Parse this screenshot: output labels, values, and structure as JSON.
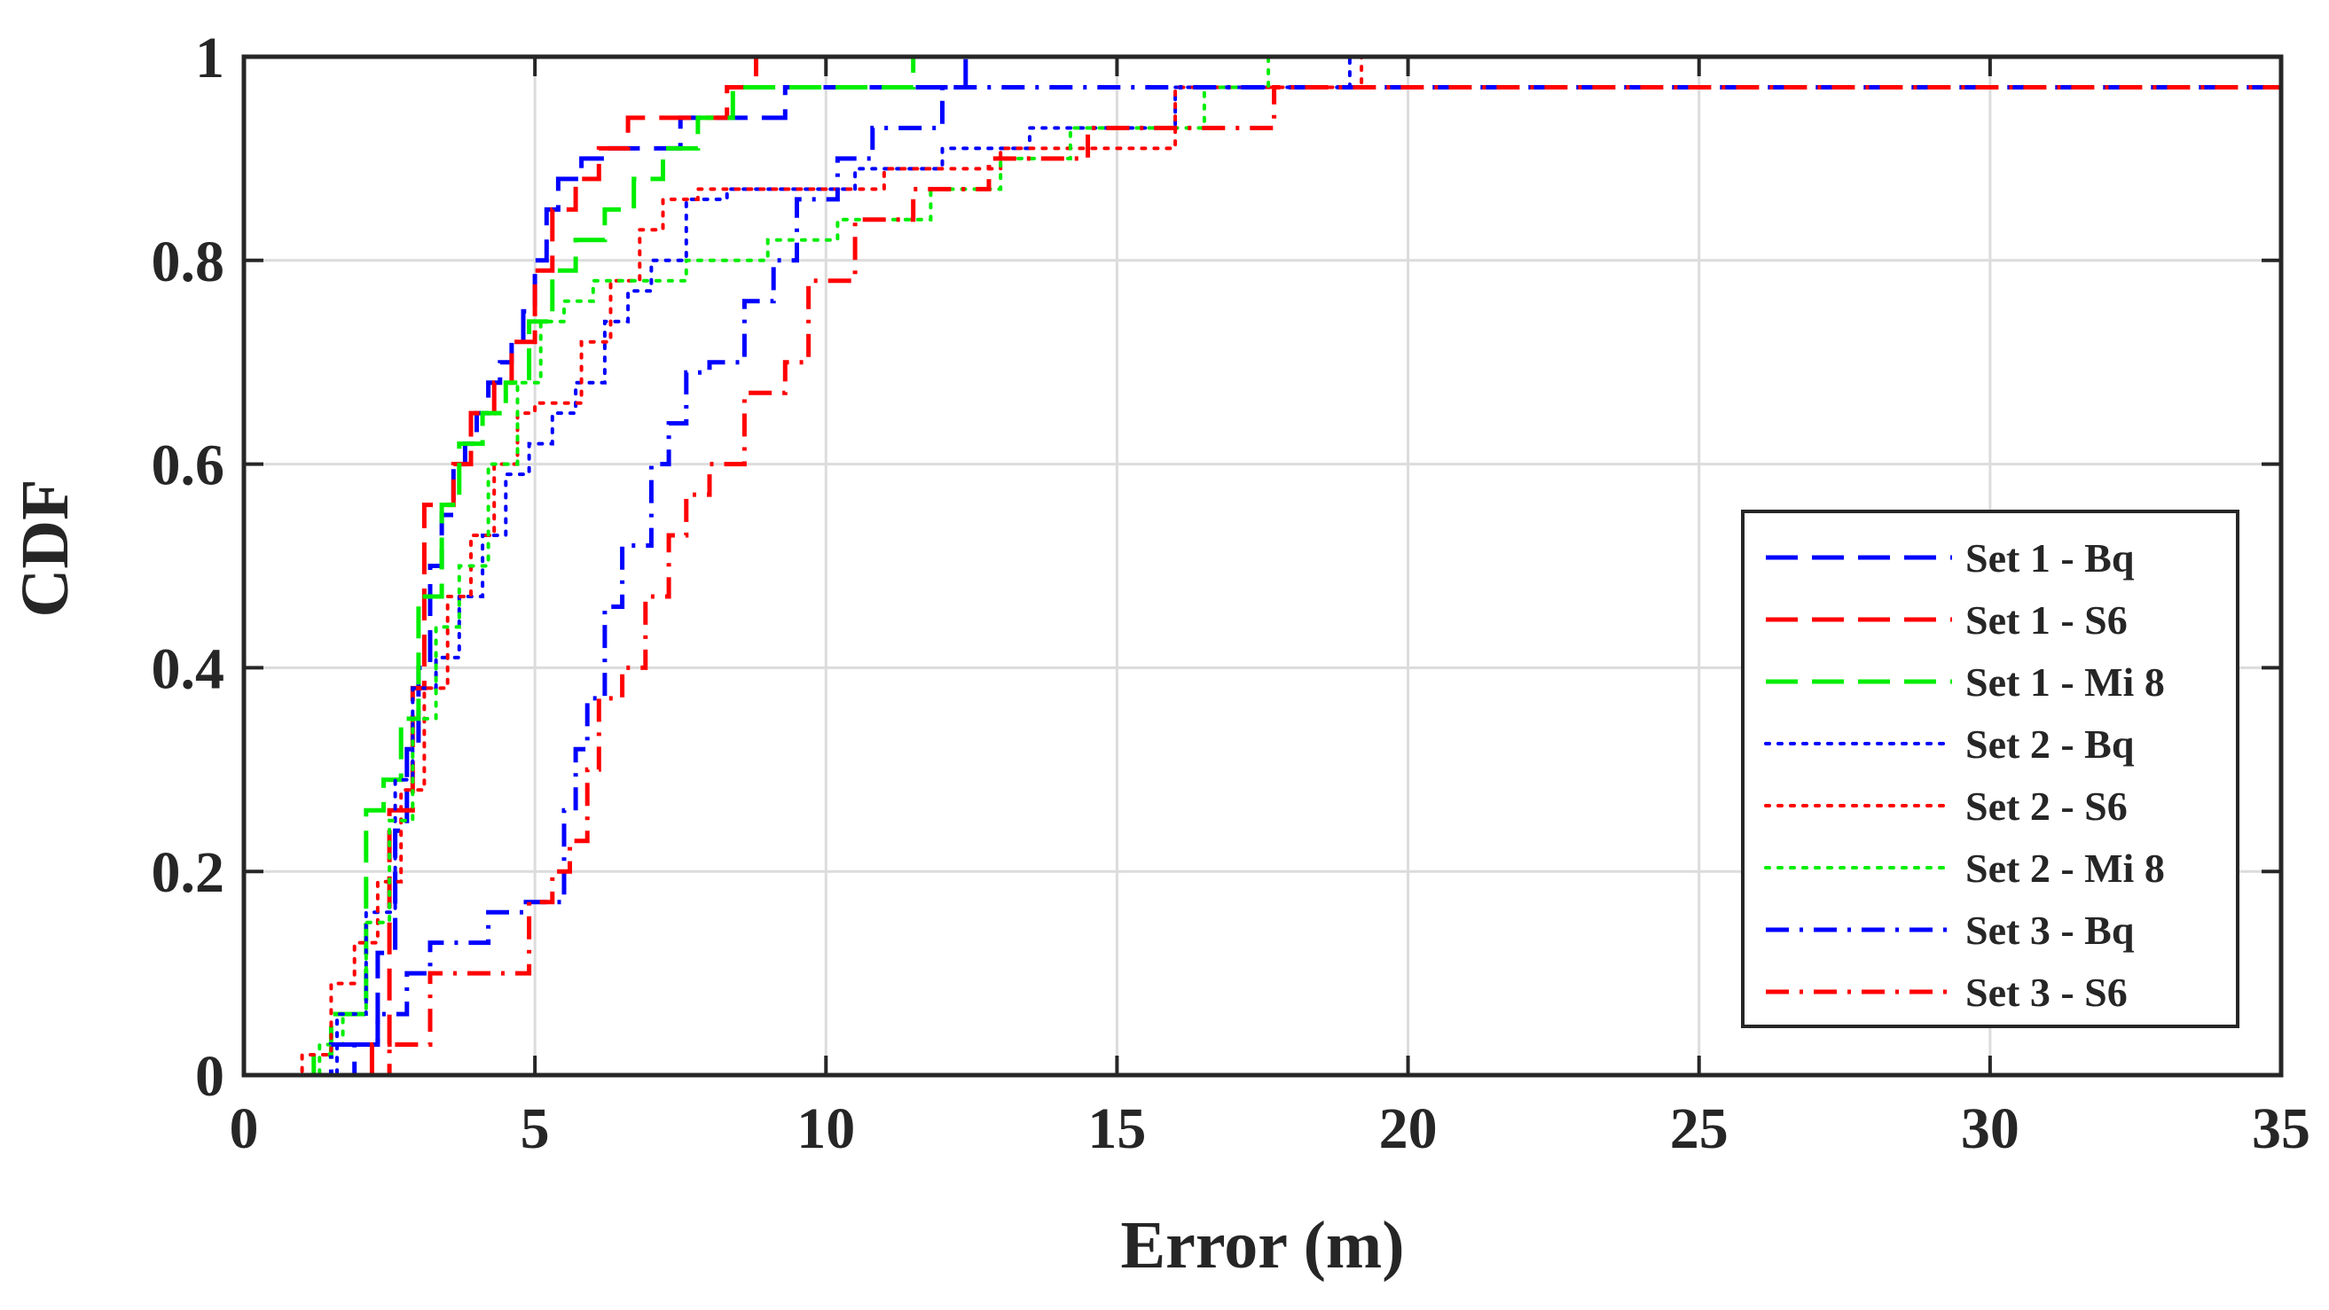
{
  "chart_data": {
    "type": "line",
    "title": "",
    "xlabel": "Error (m)",
    "ylabel": "CDF",
    "xlim": [
      0,
      35
    ],
    "ylim": [
      0,
      1
    ],
    "xticks": [
      0,
      5,
      10,
      15,
      20,
      25,
      30,
      35
    ],
    "xtick_labels": [
      "0",
      "5",
      "10",
      "15",
      "20",
      "25",
      "30",
      "35"
    ],
    "yticks": [
      0,
      0.2,
      0.4,
      0.6,
      0.8,
      1
    ],
    "ytick_labels": [
      "0",
      "0.2",
      "0.4",
      "0.6",
      "0.8",
      "1"
    ],
    "grid": true,
    "legend_position": "right-center",
    "series": [
      {
        "name": "Set 1 - Bq",
        "color": "#0000ff",
        "dash": "dashed",
        "x": [
          0,
          1.9,
          1.9,
          2.3,
          2.6,
          2.8,
          3.0,
          3.2,
          3.4,
          3.6,
          3.8,
          4.0,
          4.2,
          4.4,
          4.6,
          4.8,
          5.0,
          5.2,
          5.4,
          5.8,
          6.2,
          7.5,
          8.5,
          9.3,
          10.8,
          12.0,
          12.4,
          12.4,
          35
        ],
        "y": [
          0,
          0,
          0.03,
          0.12,
          0.24,
          0.32,
          0.4,
          0.5,
          0.55,
          0.6,
          0.62,
          0.65,
          0.68,
          0.7,
          0.72,
          0.75,
          0.8,
          0.85,
          0.88,
          0.9,
          0.91,
          0.94,
          0.94,
          0.97,
          0.97,
          0.97,
          0.97,
          1.0,
          1.0
        ]
      },
      {
        "name": "Set 1 - S6",
        "color": "#ff0000",
        "dash": "dashed",
        "x": [
          2.2,
          2.2,
          2.5,
          2.9,
          3.1,
          3.3,
          3.6,
          3.9,
          4.3,
          4.6,
          5.0,
          5.3,
          5.7,
          6.1,
          6.6,
          7.8,
          8.3,
          8.8,
          35
        ],
        "y": [
          0,
          0.03,
          0.26,
          0.38,
          0.56,
          0.56,
          0.6,
          0.65,
          0.68,
          0.72,
          0.79,
          0.85,
          0.88,
          0.91,
          0.94,
          0.94,
          0.97,
          1.0,
          1.0
        ]
      },
      {
        "name": "Set 1 - Mi 8",
        "color": "#00ee00",
        "dash": "dashed",
        "x": [
          1.0,
          1.2,
          1.5,
          2.1,
          2.4,
          2.7,
          3.0,
          3.4,
          3.7,
          4.1,
          4.5,
          4.9,
          5.3,
          5.7,
          6.2,
          6.7,
          7.2,
          7.8,
          8.4,
          10.0,
          11.5,
          35
        ],
        "y": [
          0,
          0.02,
          0.06,
          0.26,
          0.29,
          0.35,
          0.47,
          0.56,
          0.62,
          0.65,
          0.68,
          0.74,
          0.79,
          0.82,
          0.85,
          0.88,
          0.91,
          0.94,
          0.97,
          0.97,
          1.0,
          1.0
        ]
      },
      {
        "name": "Set 2 - Bq",
        "color": "#0000ff",
        "dash": "dotted",
        "x": [
          1.2,
          1.6,
          2.1,
          2.6,
          2.9,
          3.3,
          3.7,
          4.1,
          4.5,
          4.9,
          5.3,
          5.7,
          6.2,
          6.6,
          7.0,
          7.6,
          8.3,
          9.3,
          10.5,
          12.0,
          13.5,
          16.0,
          19.0,
          35
        ],
        "y": [
          0,
          0.06,
          0.16,
          0.29,
          0.38,
          0.41,
          0.47,
          0.53,
          0.59,
          0.62,
          0.65,
          0.68,
          0.74,
          0.77,
          0.8,
          0.86,
          0.87,
          0.87,
          0.89,
          0.91,
          0.93,
          0.97,
          1.0,
          1.0
        ]
      },
      {
        "name": "Set 2 - S6",
        "color": "#ff0000",
        "dash": "dotted",
        "x": [
          0,
          1.0,
          1.5,
          1.9,
          2.3,
          2.7,
          3.1,
          3.5,
          3.9,
          4.3,
          4.7,
          5.0,
          5.4,
          5.8,
          6.3,
          6.8,
          7.2,
          7.8,
          9.0,
          11.0,
          13.0,
          16.0,
          19.2,
          35
        ],
        "y": [
          0,
          0.02,
          0.09,
          0.13,
          0.19,
          0.28,
          0.38,
          0.47,
          0.53,
          0.6,
          0.65,
          0.66,
          0.66,
          0.72,
          0.78,
          0.83,
          0.86,
          0.87,
          0.87,
          0.89,
          0.91,
          0.97,
          1.0,
          1.0
        ]
      },
      {
        "name": "Set 2 - Mi 8",
        "color": "#00ee00",
        "dash": "dotted",
        "x": [
          0.9,
          1.3,
          1.7,
          2.1,
          2.5,
          2.9,
          3.3,
          3.7,
          4.2,
          4.7,
          5.1,
          5.5,
          6.0,
          6.8,
          7.6,
          9.0,
          10.2,
          11.8,
          13.0,
          14.2,
          16.5,
          17.6,
          35
        ],
        "y": [
          0,
          0.03,
          0.06,
          0.15,
          0.25,
          0.35,
          0.44,
          0.5,
          0.6,
          0.68,
          0.74,
          0.76,
          0.78,
          0.78,
          0.8,
          0.82,
          0.84,
          0.87,
          0.9,
          0.93,
          0.97,
          1.0,
          1.0
        ]
      },
      {
        "name": "Set 3 - Bq",
        "color": "#0000ff",
        "dash": "dashdot",
        "x": [
          1.2,
          1.5,
          2.3,
          2.8,
          3.2,
          3.8,
          4.2,
          4.8,
          5.5,
          5.7,
          5.9,
          6.2,
          6.5,
          7.0,
          7.3,
          7.6,
          8.0,
          8.6,
          9.1,
          9.5,
          10.2,
          10.8,
          12.0,
          35
        ],
        "y": [
          0,
          0.03,
          0.06,
          0.1,
          0.13,
          0.13,
          0.16,
          0.17,
          0.26,
          0.32,
          0.37,
          0.46,
          0.52,
          0.6,
          0.64,
          0.69,
          0.7,
          0.76,
          0.8,
          0.86,
          0.9,
          0.93,
          0.97,
          0.97
        ]
      },
      {
        "name": "Set 3 - S6",
        "color": "#ff0000",
        "dash": "dashdot",
        "x": [
          2.3,
          2.5,
          3.2,
          4.0,
          4.9,
          5.3,
          5.6,
          5.9,
          6.1,
          6.5,
          6.9,
          7.3,
          7.6,
          8.0,
          8.6,
          9.3,
          9.7,
          10.5,
          11.5,
          12.8,
          14.5,
          17.7,
          35
        ],
        "y": [
          0,
          0.03,
          0.1,
          0.1,
          0.17,
          0.2,
          0.23,
          0.3,
          0.37,
          0.4,
          0.47,
          0.53,
          0.57,
          0.6,
          0.67,
          0.7,
          0.78,
          0.84,
          0.87,
          0.9,
          0.93,
          0.97,
          0.97
        ]
      }
    ]
  }
}
